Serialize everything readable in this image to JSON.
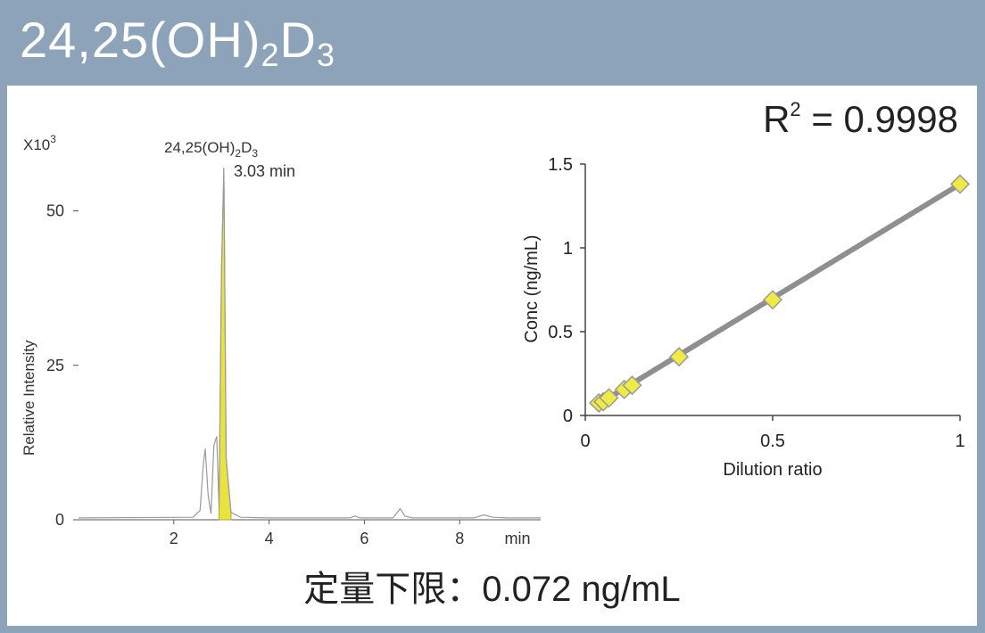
{
  "header": {
    "title_main": "24,25(OH)",
    "title_sub1": "2",
    "title_d": "D",
    "title_sub2": "3"
  },
  "footer": {
    "lod_text": "定量下限：0.072 ng/mL"
  },
  "colors": {
    "header_bg": "#8da3b9",
    "peak_fill": "#e8e341",
    "marker_fill": "#f0ea44",
    "line": "#8f8f8f"
  },
  "chart_data": [
    {
      "type": "line",
      "scale_label": "X10",
      "scale_exp": "3",
      "ylabel": "Relative Intensity",
      "xunit": "min",
      "xlim": [
        0,
        9.7
      ],
      "ylim": [
        0,
        57
      ],
      "xticks": [
        2,
        4,
        6,
        8
      ],
      "yticks": [
        0,
        25,
        50
      ],
      "peak_label_main": "24,25(OH)",
      "peak_label_sub1": "2",
      "peak_label_d": "D",
      "peak_label_sub2": "3",
      "peak_rt_label": "3.03 min",
      "peak": {
        "rt": 3.03,
        "height": 57
      },
      "series": [
        {
          "x": [
            0.0,
            2.4,
            2.55,
            2.62,
            2.66,
            2.72,
            2.78,
            2.84,
            2.9,
            2.95,
            3.0,
            3.05,
            3.1,
            3.2,
            3.4,
            4.0,
            5.7,
            5.8,
            5.9,
            6.6,
            6.75,
            6.85,
            7.0,
            8.3,
            8.5,
            8.7,
            9.0,
            9.7
          ],
          "y": [
            0.3,
            0.4,
            1.5,
            9,
            11.5,
            4,
            1,
            12,
            13.5,
            2,
            40,
            57,
            10,
            1.2,
            0.4,
            0.3,
            0.3,
            0.6,
            0.3,
            0.3,
            1.8,
            0.6,
            0.3,
            0.3,
            0.8,
            0.4,
            0.3,
            0.3
          ]
        }
      ]
    },
    {
      "type": "scatter",
      "r2_label_r": "R",
      "r2_label_exp": "2",
      "r2_label_value": " = 0.9998",
      "xlabel": "Dilution ratio",
      "ylabel": "Conc (ng/mL)",
      "xlim": [
        0,
        1
      ],
      "ylim": [
        0,
        1.5
      ],
      "xticks": [
        "0",
        "0.5",
        "1"
      ],
      "yticks": [
        "0",
        "0.5",
        "1",
        "1.5"
      ],
      "marker": "diamond",
      "fit_line": {
        "x": [
          0.03,
          1
        ],
        "y": [
          0.061,
          1.38
        ]
      },
      "series": [
        {
          "x": [
            0.036,
            0.048,
            0.063,
            0.104,
            0.125,
            0.25,
            0.5,
            1.0
          ],
          "y": [
            0.075,
            0.082,
            0.105,
            0.155,
            0.18,
            0.35,
            0.69,
            1.38
          ]
        }
      ]
    }
  ]
}
